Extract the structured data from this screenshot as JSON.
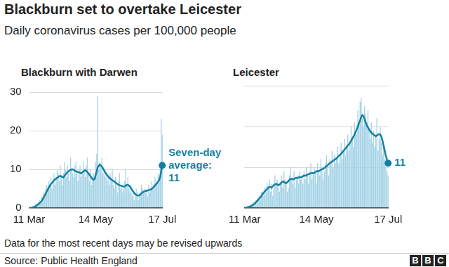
{
  "title": "Blackburn set to overtake Leicester",
  "subtitle": "Daily coronavirus cases per 100,000 people",
  "note": "Data for the most recent days may be revised upwards",
  "source": "Source: Public Health England",
  "logo": "BBC",
  "chart_data": [
    {
      "type": "bar",
      "title": "Blackburn with Darwen",
      "categories": [
        "11 Mar",
        null,
        null,
        null,
        null,
        null,
        null,
        null,
        null,
        null,
        null,
        null,
        null,
        null,
        null,
        null,
        null,
        null,
        null,
        null,
        null,
        null,
        null,
        null,
        null,
        null,
        null,
        null,
        null,
        null,
        null,
        null,
        null,
        null,
        null,
        null,
        null,
        null,
        null,
        null,
        null,
        null,
        null,
        null,
        null,
        null,
        null,
        null,
        null,
        null,
        null,
        null,
        null,
        null,
        null,
        null,
        null,
        null,
        null,
        null,
        null,
        null,
        null,
        null,
        "14 May",
        null,
        null,
        null,
        null,
        null,
        null,
        null,
        null,
        null,
        null,
        null,
        null,
        null,
        null,
        null,
        null,
        null,
        null,
        null,
        null,
        null,
        null,
        null,
        null,
        null,
        null,
        null,
        null,
        null,
        null,
        null,
        null,
        null,
        null,
        null,
        null,
        null,
        null,
        null,
        null,
        null,
        null,
        null,
        null,
        null,
        null,
        null,
        null,
        null,
        null,
        null,
        null,
        null,
        null,
        null,
        null,
        null,
        null,
        null,
        null,
        null,
        null,
        null,
        "17 Jul"
      ],
      "series": [
        {
          "type": "bar",
          "color": "#a3d2e6",
          "values": [
            0,
            0,
            0,
            0.5,
            0,
            0.5,
            1,
            0.5,
            1,
            1.5,
            2,
            1.5,
            3,
            2.5,
            4,
            3,
            5,
            6,
            5,
            7,
            6,
            8,
            5,
            7,
            9,
            6,
            8,
            10,
            9,
            7,
            11,
            8,
            6,
            9,
            12,
            10,
            8,
            11,
            9,
            7,
            13,
            10,
            9,
            8,
            11,
            12,
            9,
            7,
            10,
            11,
            8,
            9,
            12,
            10,
            8,
            11,
            13,
            9,
            7,
            10,
            6,
            8,
            9,
            7,
            12,
            14,
            29,
            10,
            12,
            11,
            13,
            9,
            10,
            8,
            9,
            7,
            8,
            6,
            9,
            7,
            10,
            6,
            5,
            8,
            6,
            4,
            7,
            9,
            5,
            6,
            4,
            5,
            7,
            10,
            6,
            8,
            5,
            4,
            6,
            3,
            4,
            2,
            3,
            5,
            4,
            2,
            3,
            4,
            6,
            5,
            4,
            5,
            4,
            5,
            3,
            6,
            4,
            5,
            7,
            5,
            6,
            8,
            7,
            6,
            9,
            8,
            11,
            23,
            19
          ]
        },
        {
          "type": "line",
          "color": "#1380a1",
          "marker": "last",
          "values": [
            0,
            0,
            0,
            0.1,
            0.2,
            0.3,
            0.4,
            0.6,
            0.8,
            1,
            1.2,
            1.5,
            1.8,
            2.2,
            2.7,
            3.2,
            3.7,
            4.3,
            4.8,
            5.3,
            5.8,
            6.2,
            6.5,
            6.8,
            7.2,
            7.4,
            7.6,
            7.8,
            8,
            8.2,
            8.3,
            8.2,
            8,
            7.9,
            8.3,
            8.7,
            9,
            9.3,
            9.5,
            9.7,
            9.9,
            10,
            10,
            9.8,
            9.6,
            9.5,
            9.4,
            9.3,
            9.2,
            9.1,
            9,
            9.2,
            9.4,
            9.6,
            9.8,
            9.6,
            9.3,
            9,
            8.6,
            8.2,
            7.8,
            7.5,
            7.3,
            7.5,
            8.5,
            9.5,
            10.5,
            11,
            11.2,
            11,
            10.7,
            10.3,
            9.8,
            9.3,
            8.9,
            8.5,
            8.2,
            7.9,
            7.6,
            7.4,
            7.2,
            7,
            6.8,
            6.6,
            6.4,
            6.2,
            6,
            5.9,
            5.8,
            5.7,
            5.6,
            5.5,
            5.6,
            5.8,
            6,
            6,
            5.8,
            5.5,
            5.1,
            4.7,
            4.3,
            3.9,
            3.6,
            3.4,
            3.3,
            3.2,
            3.3,
            3.5,
            3.8,
            4,
            4.2,
            4.3,
            4.4,
            4.5,
            4.5,
            4.6,
            4.7,
            4.8,
            5,
            5.2,
            5.5,
            5.8,
            6.1,
            6.4,
            6.8,
            7.2,
            8,
            9.5,
            11
          ]
        }
      ],
      "ylim": [
        0,
        30
      ],
      "yticks": [
        0,
        10,
        20,
        30
      ],
      "grid": true,
      "annotation": [
        "Seven-day",
        "average:",
        "11"
      ]
    },
    {
      "type": "bar",
      "title": "Leicester",
      "categories": [
        "11 Mar",
        null,
        null,
        null,
        null,
        null,
        null,
        null,
        null,
        null,
        null,
        null,
        null,
        null,
        null,
        null,
        null,
        null,
        null,
        null,
        null,
        null,
        null,
        null,
        null,
        null,
        null,
        null,
        null,
        null,
        null,
        null,
        null,
        null,
        null,
        null,
        null,
        null,
        null,
        null,
        null,
        null,
        null,
        null,
        null,
        null,
        null,
        null,
        null,
        null,
        null,
        null,
        null,
        null,
        null,
        null,
        null,
        null,
        null,
        null,
        null,
        null,
        null,
        null,
        "14 May",
        null,
        null,
        null,
        null,
        null,
        null,
        null,
        null,
        null,
        null,
        null,
        null,
        null,
        null,
        null,
        null,
        null,
        null,
        null,
        null,
        null,
        null,
        null,
        null,
        null,
        null,
        null,
        null,
        null,
        null,
        null,
        null,
        null,
        null,
        null,
        null,
        null,
        null,
        null,
        null,
        null,
        null,
        null,
        null,
        null,
        null,
        null,
        null,
        null,
        null,
        null,
        null,
        null,
        null,
        null,
        null,
        null,
        null,
        null,
        null,
        null,
        null,
        null,
        "17 Jul"
      ],
      "series": [
        {
          "type": "bar",
          "color": "#a3d2e6",
          "values": [
            0,
            0,
            0.5,
            0,
            0.5,
            1,
            0.5,
            1,
            1.5,
            1,
            2,
            1.5,
            2.5,
            3,
            2,
            4,
            3.5,
            3,
            5,
            4,
            6,
            5,
            7,
            4,
            6,
            3,
            5,
            8,
            6,
            7,
            5,
            4,
            6,
            8,
            5,
            9,
            7,
            6,
            4,
            5,
            8,
            10,
            7,
            6,
            9,
            5,
            7,
            8,
            6,
            9,
            7,
            8,
            6,
            9,
            7,
            10,
            8,
            6,
            9,
            11,
            7,
            8,
            10,
            9,
            6,
            11,
            9,
            8,
            12,
            10,
            7,
            9,
            11,
            13,
            10,
            8,
            12,
            11,
            14,
            10,
            13,
            11,
            12,
            15,
            11,
            13,
            16,
            12,
            14,
            17,
            13,
            15,
            18,
            14,
            16,
            20,
            17,
            15,
            21,
            19,
            18,
            24,
            21,
            26,
            27,
            22,
            20,
            25,
            23,
            21,
            24,
            19,
            17,
            21,
            16,
            19,
            15,
            18,
            22,
            14,
            17,
            20,
            16,
            13,
            15,
            12,
            10,
            9,
            8
          ]
        },
        {
          "type": "line",
          "color": "#1380a1",
          "marker": "last",
          "values": [
            0,
            0,
            0.1,
            0.2,
            0.3,
            0.4,
            0.5,
            0.7,
            0.9,
            1.1,
            1.4,
            1.7,
            2,
            2.3,
            2.6,
            3,
            3.4,
            3.8,
            4.1,
            4.4,
            4.7,
            5,
            5.2,
            5.1,
            5,
            5.3,
            5.6,
            5.8,
            5.9,
            5.8,
            5.6,
            5.7,
            6,
            6.3,
            6.5,
            6.4,
            6.2,
            6.1,
            6.3,
            6.6,
            6.9,
            7.1,
            7.2,
            7,
            7.1,
            7.3,
            7.4,
            7.3,
            7.5,
            7.6,
            7.5,
            7.6,
            7.8,
            8,
            7.9,
            8,
            8.2,
            8.3,
            8.4,
            8.5,
            8.6,
            8.5,
            8.6,
            8.8,
            9,
            9.1,
            9,
            9.2,
            9.4,
            9.5,
            9.6,
            9.8,
            10,
            10.2,
            10.5,
            10.8,
            11,
            11.2,
            11.4,
            11.6,
            11.8,
            12,
            12.2,
            12.5,
            12.8,
            13,
            13.3,
            13.6,
            14,
            14.3,
            14.6,
            15,
            15.3,
            15.6,
            16,
            16.5,
            17,
            17.5,
            18,
            18.6,
            19.3,
            20,
            20.8,
            21.5,
            22.3,
            22.8,
            22.5,
            21.8,
            21,
            20.2,
            19.8,
            19.3,
            18.8,
            18.5,
            18.2,
            18,
            17.8,
            17.6,
            17.8,
            18,
            18.1,
            18,
            17.5,
            16.5,
            15.3,
            14,
            12.8,
            11.8,
            11
          ]
        }
      ],
      "ylim": [
        0,
        30
      ],
      "yticks": [
        0,
        10,
        20,
        30
      ],
      "grid": true,
      "tick_labels": "x",
      "annotation": [
        "11"
      ]
    }
  ]
}
